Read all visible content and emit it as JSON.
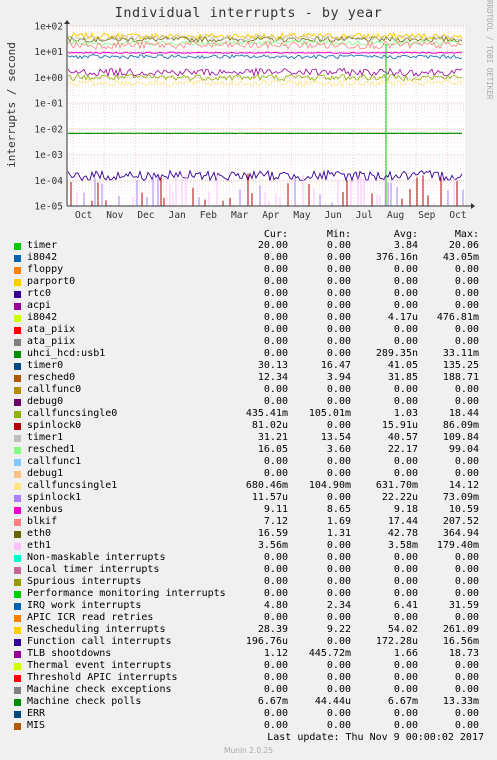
{
  "chart_data": {
    "type": "line",
    "title": "Individual interrupts - by year",
    "ylabel": "interrupts / second",
    "yscale": "log",
    "ylim": [
      1e-05,
      100
    ],
    "yticks": [
      "1e+02",
      "1e+01",
      "1e+00",
      "1e-01",
      "1e-02",
      "1e-03",
      "1e-04",
      "1e-05"
    ],
    "xticks": [
      "Oct",
      "Nov",
      "Dec",
      "Jan",
      "Feb",
      "Mar",
      "Apr",
      "May",
      "Jun",
      "Jul",
      "Aug",
      "Sep",
      "Oct"
    ],
    "grid": true,
    "legend_columns": [
      "Cur:",
      "Min:",
      "Avg:",
      "Max:"
    ],
    "series": [
      {
        "name": "timer",
        "color": "#00cc00",
        "cur": "20.00",
        "min": "0.00",
        "avg": "3.84",
        "max": "20.06"
      },
      {
        "name": "i8042",
        "color": "#0066b3",
        "cur": "0.00",
        "min": "0.00",
        "avg": "376.16n",
        "max": "43.05m"
      },
      {
        "name": "floppy",
        "color": "#ff8000",
        "cur": "0.00",
        "min": "0.00",
        "avg": "0.00",
        "max": "0.00"
      },
      {
        "name": "parport0",
        "color": "#ffcc00",
        "cur": "0.00",
        "min": "0.00",
        "avg": "0.00",
        "max": "0.00"
      },
      {
        "name": "rtc0",
        "color": "#330099",
        "cur": "0.00",
        "min": "0.00",
        "avg": "0.00",
        "max": "0.00"
      },
      {
        "name": "acpi",
        "color": "#990099",
        "cur": "0.00",
        "min": "0.00",
        "avg": "0.00",
        "max": "0.00"
      },
      {
        "name": "i8042",
        "color": "#ccff00",
        "cur": "0.00",
        "min": "0.00",
        "avg": "4.17u",
        "max": "476.81m"
      },
      {
        "name": "ata_piix",
        "color": "#ff0000",
        "cur": "0.00",
        "min": "0.00",
        "avg": "0.00",
        "max": "0.00"
      },
      {
        "name": "ata_piix",
        "color": "#808080",
        "cur": "0.00",
        "min": "0.00",
        "avg": "0.00",
        "max": "0.00"
      },
      {
        "name": "uhci_hcd:usb1",
        "color": "#008f00",
        "cur": "0.00",
        "min": "0.00",
        "avg": "289.35n",
        "max": "33.11m"
      },
      {
        "name": "timer0",
        "color": "#00487d",
        "cur": "30.13",
        "min": "16.47",
        "avg": "41.05",
        "max": "135.25"
      },
      {
        "name": "resched0",
        "color": "#b35a00",
        "cur": "12.34",
        "min": "3.94",
        "avg": "31.85",
        "max": "188.71"
      },
      {
        "name": "callfunc0",
        "color": "#b38f00",
        "cur": "0.00",
        "min": "0.00",
        "avg": "0.00",
        "max": "0.00"
      },
      {
        "name": "debug0",
        "color": "#6b006b",
        "cur": "0.00",
        "min": "0.00",
        "avg": "0.00",
        "max": "0.00"
      },
      {
        "name": "callfuncsingle0",
        "color": "#8fb300",
        "cur": "435.41m",
        "min": "105.01m",
        "avg": "1.03",
        "max": "18.44"
      },
      {
        "name": "spinlock0",
        "color": "#b30000",
        "cur": "81.02u",
        "min": "0.00",
        "avg": "15.91u",
        "max": "86.09m"
      },
      {
        "name": "timer1",
        "color": "#bebebe",
        "cur": "31.21",
        "min": "13.54",
        "avg": "40.57",
        "max": "109.84"
      },
      {
        "name": "resched1",
        "color": "#80ff80",
        "cur": "16.05",
        "min": "3.60",
        "avg": "22.17",
        "max": "99.04"
      },
      {
        "name": "callfunc1",
        "color": "#80c9ff",
        "cur": "0.00",
        "min": "0.00",
        "avg": "0.00",
        "max": "0.00"
      },
      {
        "name": "debug1",
        "color": "#ffc080",
        "cur": "0.00",
        "min": "0.00",
        "avg": "0.00",
        "max": "0.00"
      },
      {
        "name": "callfuncsingle1",
        "color": "#ffe680",
        "cur": "680.46m",
        "min": "104.90m",
        "avg": "631.70m",
        "max": "14.12"
      },
      {
        "name": "spinlock1",
        "color": "#aa80ff",
        "cur": "11.57u",
        "min": "0.00",
        "avg": "22.22u",
        "max": "73.09m"
      },
      {
        "name": "xenbus",
        "color": "#ee00cc",
        "cur": "9.11",
        "min": "8.65",
        "avg": "9.18",
        "max": "10.59"
      },
      {
        "name": "blkif",
        "color": "#ff8080",
        "cur": "7.12",
        "min": "1.69",
        "avg": "17.44",
        "max": "207.52"
      },
      {
        "name": "eth0",
        "color": "#666600",
        "cur": "16.59",
        "min": "1.31",
        "avg": "42.78",
        "max": "364.94"
      },
      {
        "name": "eth1",
        "color": "#ffbfff",
        "cur": "3.56m",
        "min": "0.00",
        "avg": "3.58m",
        "max": "179.40m"
      },
      {
        "name": "Non-maskable interrupts",
        "color": "#00ffcc",
        "cur": "0.00",
        "min": "0.00",
        "avg": "0.00",
        "max": "0.00"
      },
      {
        "name": "Local timer interrupts",
        "color": "#cc6699",
        "cur": "0.00",
        "min": "0.00",
        "avg": "0.00",
        "max": "0.00"
      },
      {
        "name": "Spurious interrupts",
        "color": "#999900",
        "cur": "0.00",
        "min": "0.00",
        "avg": "0.00",
        "max": "0.00"
      },
      {
        "name": "Performance monitoring interrupts",
        "color": "#00cc00",
        "cur": "0.00",
        "min": "0.00",
        "avg": "0.00",
        "max": "0.00"
      },
      {
        "name": "IRQ work interrupts",
        "color": "#0066b3",
        "cur": "4.80",
        "min": "2.34",
        "avg": "6.41",
        "max": "31.59"
      },
      {
        "name": "APIC ICR read retries",
        "color": "#ff8000",
        "cur": "0.00",
        "min": "0.00",
        "avg": "0.00",
        "max": "0.00"
      },
      {
        "name": "Rescheduling interrupts",
        "color": "#ffcc00",
        "cur": "28.39",
        "min": "9.22",
        "avg": "54.02",
        "max": "261.09"
      },
      {
        "name": "Function call interrupts",
        "color": "#330099",
        "cur": "196.76u",
        "min": "0.00",
        "avg": "172.28u",
        "max": "16.56m"
      },
      {
        "name": "TLB shootdowns",
        "color": "#990099",
        "cur": "1.12",
        "min": "445.72m",
        "avg": "1.66",
        "max": "18.73"
      },
      {
        "name": "Thermal event interrupts",
        "color": "#ccff00",
        "cur": "0.00",
        "min": "0.00",
        "avg": "0.00",
        "max": "0.00"
      },
      {
        "name": "Threshold APIC interrupts",
        "color": "#ff0000",
        "cur": "0.00",
        "min": "0.00",
        "avg": "0.00",
        "max": "0.00"
      },
      {
        "name": "Machine check exceptions",
        "color": "#808080",
        "cur": "0.00",
        "min": "0.00",
        "avg": "0.00",
        "max": "0.00"
      },
      {
        "name": "Machine check polls",
        "color": "#008f00",
        "cur": "6.67m",
        "min": "44.44u",
        "avg": "6.67m",
        "max": "13.33m"
      },
      {
        "name": "ERR",
        "color": "#00487d",
        "cur": "0.00",
        "min": "0.00",
        "avg": "0.00",
        "max": "0.00"
      },
      {
        "name": "MIS",
        "color": "#b35a00",
        "cur": "0.00",
        "min": "0.00",
        "avg": "0.00",
        "max": "0.00"
      }
    ]
  },
  "watermark": "RRDTOOL / TOBI OETIKER",
  "last_update": "Last update:  Thu Nov  9 00:00:02 2017",
  "munin_version": "Munin 2.0.25"
}
